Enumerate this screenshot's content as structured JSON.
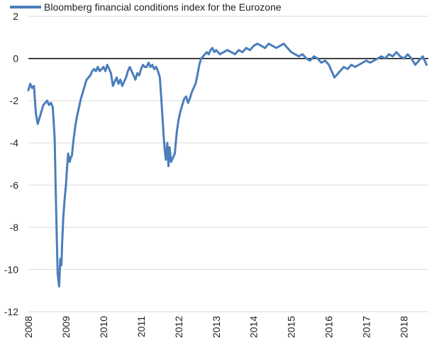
{
  "chart_data": {
    "type": "line",
    "title": "",
    "xlabel": "",
    "ylabel": "",
    "legend_position": "top-left",
    "grid": "horizontal",
    "xlim": [
      2008.0,
      2018.65
    ],
    "ylim": [
      -12,
      2
    ],
    "yticks": [
      "2",
      "0",
      "-2",
      "-4",
      "-6",
      "-8",
      "-10",
      "-12"
    ],
    "xticks": [
      "2008",
      "2009",
      "2010",
      "2011",
      "2012",
      "2013",
      "2014",
      "2015",
      "2016",
      "2017",
      "2018"
    ],
    "colors": {
      "series": "#4a7ebb",
      "grid": "#d9d9d9",
      "zero_line": "#000000"
    },
    "series": [
      {
        "name": "Bloomberg financial conditions index for the Eurozone",
        "x": [
          2008.0,
          2008.05,
          2008.1,
          2008.15,
          2008.2,
          2008.25,
          2008.3,
          2008.35,
          2008.4,
          2008.45,
          2008.5,
          2008.55,
          2008.6,
          2008.65,
          2008.7,
          2008.72,
          2008.75,
          2008.78,
          2008.82,
          2008.85,
          2008.88,
          2008.9,
          2008.93,
          2008.96,
          2009.0,
          2009.03,
          2009.06,
          2009.1,
          2009.13,
          2009.16,
          2009.2,
          2009.25,
          2009.3,
          2009.35,
          2009.4,
          2009.45,
          2009.5,
          2009.55,
          2009.6,
          2009.65,
          2009.7,
          2009.75,
          2009.8,
          2009.85,
          2009.9,
          2009.95,
          2010.0,
          2010.05,
          2010.1,
          2010.15,
          2010.2,
          2010.25,
          2010.3,
          2010.35,
          2010.4,
          2010.45,
          2010.5,
          2010.55,
          2010.6,
          2010.65,
          2010.7,
          2010.75,
          2010.8,
          2010.85,
          2010.9,
          2010.95,
          2011.0,
          2011.05,
          2011.1,
          2011.15,
          2011.2,
          2011.25,
          2011.3,
          2011.35,
          2011.4,
          2011.45,
          2011.5,
          2011.55,
          2011.6,
          2011.63,
          2011.66,
          2011.7,
          2011.73,
          2011.76,
          2011.8,
          2011.85,
          2011.9,
          2011.95,
          2012.0,
          2012.05,
          2012.1,
          2012.15,
          2012.2,
          2012.25,
          2012.3,
          2012.35,
          2012.4,
          2012.45,
          2012.5,
          2012.55,
          2012.6,
          2012.65,
          2012.7,
          2012.75,
          2012.8,
          2012.85,
          2012.9,
          2012.95,
          2013.0,
          2013.1,
          2013.2,
          2013.3,
          2013.4,
          2013.5,
          2013.6,
          2013.7,
          2013.8,
          2013.9,
          2014.0,
          2014.1,
          2014.2,
          2014.3,
          2014.4,
          2014.5,
          2014.6,
          2014.7,
          2014.8,
          2014.9,
          2015.0,
          2015.1,
          2015.2,
          2015.3,
          2015.4,
          2015.5,
          2015.6,
          2015.7,
          2015.8,
          2015.9,
          2016.0,
          2016.05,
          2016.1,
          2016.15,
          2016.2,
          2016.3,
          2016.4,
          2016.5,
          2016.6,
          2016.7,
          2016.8,
          2016.9,
          2017.0,
          2017.1,
          2017.2,
          2017.3,
          2017.4,
          2017.5,
          2017.6,
          2017.7,
          2017.8,
          2017.9,
          2018.0,
          2018.1,
          2018.2,
          2018.3,
          2018.4,
          2018.5,
          2018.6
        ],
        "values": [
          -1.5,
          -1.2,
          -1.4,
          -1.3,
          -2.6,
          -3.1,
          -2.8,
          -2.5,
          -2.2,
          -2.1,
          -2.0,
          -2.2,
          -2.1,
          -2.3,
          -3.8,
          -5.5,
          -8.0,
          -10.2,
          -10.8,
          -9.5,
          -9.8,
          -8.7,
          -7.5,
          -6.8,
          -6.0,
          -5.2,
          -4.5,
          -4.9,
          -4.7,
          -4.6,
          -3.9,
          -3.2,
          -2.7,
          -2.3,
          -1.9,
          -1.6,
          -1.3,
          -1.0,
          -0.9,
          -0.8,
          -0.6,
          -0.5,
          -0.6,
          -0.4,
          -0.6,
          -0.5,
          -0.4,
          -0.6,
          -0.3,
          -0.5,
          -0.7,
          -1.3,
          -1.1,
          -0.9,
          -1.2,
          -1.0,
          -1.3,
          -1.1,
          -0.9,
          -0.6,
          -0.4,
          -0.6,
          -0.8,
          -1.0,
          -0.7,
          -0.8,
          -0.5,
          -0.3,
          -0.4,
          -0.4,
          -0.2,
          -0.4,
          -0.3,
          -0.5,
          -0.4,
          -0.6,
          -0.9,
          -2.2,
          -3.6,
          -4.3,
          -4.8,
          -4.0,
          -5.1,
          -4.2,
          -4.9,
          -4.7,
          -4.5,
          -3.5,
          -2.9,
          -2.5,
          -2.2,
          -1.9,
          -1.8,
          -2.1,
          -1.9,
          -1.6,
          -1.4,
          -1.2,
          -0.8,
          -0.3,
          0.0,
          0.1,
          0.2,
          0.3,
          0.2,
          0.4,
          0.5,
          0.3,
          0.4,
          0.2,
          0.3,
          0.4,
          0.3,
          0.2,
          0.4,
          0.3,
          0.5,
          0.4,
          0.6,
          0.7,
          0.6,
          0.5,
          0.7,
          0.6,
          0.5,
          0.6,
          0.7,
          0.5,
          0.3,
          0.2,
          0.1,
          0.2,
          0.0,
          -0.1,
          0.1,
          0.0,
          -0.2,
          -0.1,
          -0.3,
          -0.5,
          -0.7,
          -0.9,
          -0.8,
          -0.6,
          -0.4,
          -0.5,
          -0.3,
          -0.4,
          -0.3,
          -0.2,
          -0.1,
          -0.2,
          -0.1,
          0.0,
          0.1,
          0.0,
          0.2,
          0.1,
          0.3,
          0.1,
          0.0,
          0.2,
          0.0,
          -0.3,
          -0.1,
          0.1,
          -0.3
        ]
      }
    ]
  }
}
